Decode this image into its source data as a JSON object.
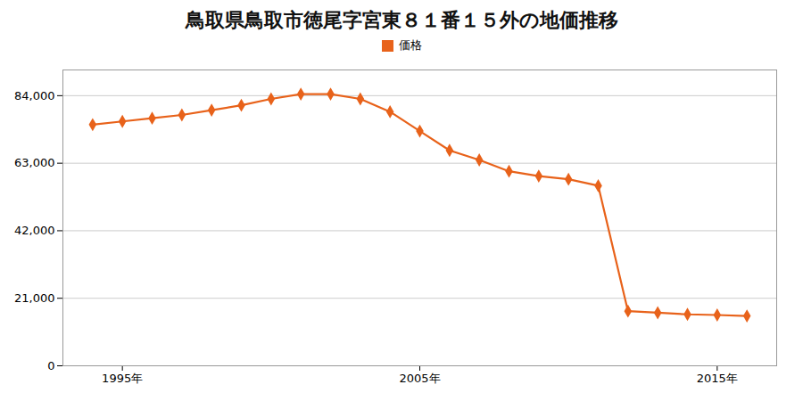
{
  "chart_data": {
    "type": "line",
    "title": "鳥取県鳥取市徳尾字宮東８１番１５外の地価推移",
    "x": [
      1994,
      1995,
      1996,
      1997,
      1998,
      1999,
      2000,
      2001,
      2002,
      2003,
      2004,
      2005,
      2006,
      2007,
      2008,
      2009,
      2010,
      2011,
      2012,
      2013,
      2014,
      2015,
      2016
    ],
    "series": [
      {
        "name": "価格",
        "color": "#e8621a",
        "marker": "diamond",
        "values": [
          75000,
          76000,
          77000,
          78000,
          79500,
          81000,
          83000,
          84500,
          84500,
          83000,
          79000,
          73000,
          67000,
          64000,
          60500,
          59000,
          58000,
          56000,
          17000,
          16500,
          16000,
          15800,
          15500
        ]
      }
    ],
    "xlim": [
      1993,
      2017
    ],
    "xticks": [
      {
        "value": 1995,
        "label": "1995年"
      },
      {
        "value": 2005,
        "label": "2005年"
      },
      {
        "value": 2015,
        "label": "2015年"
      }
    ],
    "ylim": [
      0,
      92000
    ],
    "yticks": [
      0,
      {
        "value": 21000,
        "label": "21,000"
      },
      {
        "value": 42000,
        "label": "42,000"
      },
      {
        "value": 63000,
        "label": "63,000"
      },
      {
        "value": 84000,
        "label": "84,000"
      }
    ],
    "grid": true,
    "legend": "top"
  }
}
